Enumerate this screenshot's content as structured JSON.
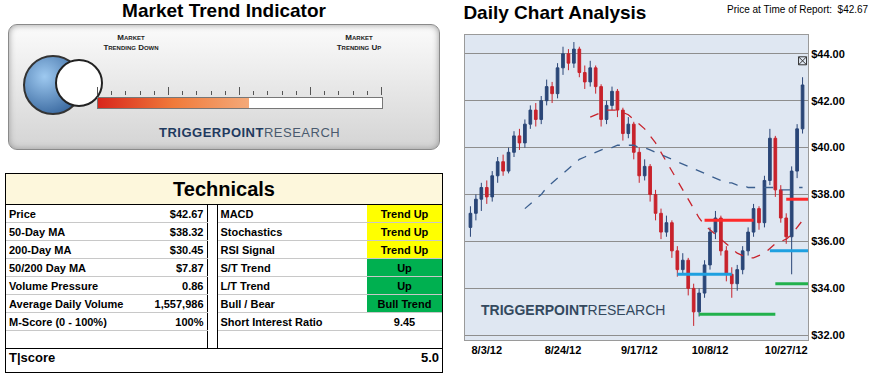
{
  "indicator": {
    "title": "Market Trend Indicator",
    "left_label": [
      "Market",
      "Trending Down"
    ],
    "right_label": [
      "Market",
      "Trending Up"
    ],
    "value": 53,
    "min": 0,
    "max": 100
  },
  "logo": {
    "bold": "TRIGGERPOINT",
    "light": "RESEARCH"
  },
  "technicals": {
    "title": "Technicals",
    "rows": [
      {
        "cells": [
          "Price",
          "$42.67",
          "MACD",
          "Trend Up"
        ],
        "color": "#ffff00"
      },
      {
        "cells": [
          "50-Day MA",
          "$38.32",
          "Stochastics",
          "Trend Up"
        ],
        "color": "#ffff00"
      },
      {
        "cells": [
          "200-Day MA",
          "$30.45",
          "RSI Signal",
          "Trend Up"
        ],
        "color": "#ffff00"
      },
      {
        "cells": [
          "50/200 Day MA",
          "$7.87",
          "S/T Trend",
          "Up"
        ],
        "color": "#00b050"
      },
      {
        "cells": [
          "Volume Pressure",
          "0.86",
          "L/T Trend",
          "Up"
        ],
        "color": "#00b050"
      },
      {
        "cells": [
          "Average Daily Volume",
          "1,557,986",
          "Bull / Bear",
          "Bull Trend"
        ],
        "color": "#00b050"
      },
      {
        "cells": [
          "M-Score (0 - 100%)",
          "100%",
          "Short Interest Ratio",
          "9.45"
        ],
        "color": "#ffffff"
      }
    ],
    "score": {
      "label": "T|score",
      "value": "5.0"
    }
  },
  "chart_data": {
    "type": "candlestick",
    "title": "Daily Chart Analysis",
    "subtitle": "Price at Time of Report:  $42.67",
    "categories": [
      null,
      null,
      null,
      "8/3/12",
      null,
      null,
      null,
      null,
      null,
      null,
      null,
      null,
      null,
      null,
      null,
      null,
      null,
      "8/24/12",
      null,
      null,
      null,
      null,
      null,
      null,
      null,
      null,
      null,
      null,
      null,
      null,
      null,
      "9/17/12",
      null,
      null,
      null,
      null,
      null,
      null,
      null,
      null,
      null,
      null,
      null,
      null,
      "10/8/12",
      null,
      null,
      null,
      null,
      null,
      null,
      null,
      null,
      null,
      null,
      null,
      null,
      null,
      "10/27/12",
      null,
      null,
      null
    ],
    "ylim": [
      31.8,
      44.8
    ],
    "yticks": [
      {
        "value": 32,
        "label": "$32.00"
      },
      {
        "value": 34,
        "label": "$34.00"
      },
      {
        "value": 36,
        "label": "$36.00"
      },
      {
        "value": 38,
        "label": "$38.00"
      },
      {
        "value": 40,
        "label": "$40.00"
      },
      {
        "value": 42,
        "label": "$42.00"
      },
      {
        "value": 44,
        "label": "$44.00"
      }
    ],
    "grid": true,
    "series": [
      {
        "type": "candlestick",
        "color": {
          "increasing": "#2a4677",
          "decreasing": "#c8232c"
        },
        "open": [
          36.6,
          37.2,
          37.8,
          38.3,
          37.9,
          38.8,
          39.4,
          39.0,
          39.8,
          40.5,
          40.2,
          41.0,
          41.6,
          41.2,
          42.0,
          42.6,
          42.3,
          43.4,
          44.0,
          43.6,
          44.2,
          43.2,
          42.8,
          43.4,
          42.6,
          41.2,
          41.8,
          42.4,
          41.6,
          40.6,
          41.0,
          39.8,
          38.8,
          39.2,
          38.0,
          37.2,
          36.4,
          36.8,
          35.6,
          34.8,
          35.2,
          34.0,
          33.0,
          33.8,
          35.0,
          36.4,
          37.0,
          35.6,
          34.6,
          34.2,
          34.8,
          35.6,
          36.4,
          37.4,
          36.8,
          38.6,
          40.4,
          38.2,
          37.0,
          36.2,
          39.0,
          40.8
        ],
        "high": [
          37.5,
          38.0,
          38.5,
          38.6,
          39.0,
          39.6,
          39.7,
          40.0,
          40.7,
          40.8,
          41.2,
          41.8,
          41.9,
          42.2,
          42.9,
          42.8,
          43.6,
          44.3,
          44.2,
          44.5,
          44.3,
          43.5,
          43.7,
          43.5,
          42.7,
          42.0,
          42.6,
          42.5,
          41.7,
          41.3,
          41.1,
          40.0,
          39.5,
          39.3,
          38.2,
          37.4,
          37.1,
          36.9,
          35.8,
          35.5,
          35.3,
          34.2,
          34.0,
          35.2,
          36.6,
          37.3,
          37.1,
          35.8,
          34.9,
          35.0,
          35.8,
          36.6,
          37.6,
          37.5,
          38.8,
          40.8,
          40.5,
          38.4,
          37.2,
          39.2,
          41.0,
          43.0
        ],
        "low": [
          36.2,
          36.9,
          37.3,
          37.6,
          37.7,
          38.5,
          38.8,
          38.9,
          39.6,
          39.9,
          40.0,
          40.8,
          40.9,
          41.0,
          41.8,
          41.9,
          42.1,
          43.1,
          43.3,
          43.4,
          43.0,
          42.5,
          42.6,
          42.3,
          40.9,
          41.0,
          41.6,
          41.3,
          40.3,
          40.4,
          39.5,
          38.5,
          38.6,
          37.7,
          36.9,
          36.1,
          36.2,
          35.3,
          34.5,
          34.6,
          33.7,
          32.4,
          32.8,
          33.6,
          34.8,
          36.1,
          35.4,
          34.3,
          33.6,
          33.9,
          34.6,
          35.4,
          36.2,
          36.5,
          36.6,
          38.4,
          37.9,
          36.8,
          35.9,
          34.6,
          38.7,
          40.6
        ],
        "close": [
          37.2,
          37.8,
          38.3,
          37.9,
          38.8,
          39.4,
          39.0,
          39.8,
          40.5,
          40.2,
          41.0,
          41.6,
          41.2,
          42.0,
          42.6,
          42.3,
          43.4,
          44.0,
          43.6,
          44.2,
          43.2,
          42.8,
          43.4,
          42.6,
          41.2,
          41.8,
          42.4,
          41.6,
          40.6,
          41.0,
          39.8,
          38.8,
          39.2,
          38.0,
          37.2,
          36.4,
          36.8,
          35.6,
          34.8,
          35.2,
          34.0,
          33.0,
          33.8,
          35.0,
          36.4,
          37.0,
          35.6,
          34.6,
          34.2,
          34.8,
          35.6,
          36.4,
          37.4,
          36.8,
          38.6,
          40.4,
          38.2,
          37.0,
          36.2,
          39.0,
          40.8,
          42.67
        ]
      },
      {
        "type": "line",
        "color": "#c8232c",
        "line_style": "dash",
        "values": [
          null,
          null,
          null,
          null,
          null,
          null,
          null,
          null,
          null,
          null,
          null,
          null,
          null,
          null,
          null,
          null,
          null,
          null,
          null,
          null,
          null,
          null,
          41.3,
          41.4,
          41.5,
          41.6,
          41.6,
          41.6,
          41.5,
          41.4,
          41.2,
          41.0,
          40.8,
          40.5,
          40.2,
          39.8,
          39.4,
          39.0,
          38.6,
          38.2,
          37.8,
          37.4,
          37.0,
          36.7,
          36.5,
          36.3,
          36.1,
          35.9,
          35.7,
          35.5,
          35.4,
          35.3,
          35.3,
          35.4,
          35.5,
          35.7,
          35.9,
          36.0,
          36.1,
          36.3,
          36.6,
          36.9
        ]
      },
      {
        "type": "line",
        "color": "#3b5f8f",
        "line_style": "dash",
        "values": [
          null,
          null,
          null,
          null,
          null,
          null,
          null,
          null,
          null,
          null,
          37.4,
          37.6,
          37.8,
          38.0,
          38.3,
          38.5,
          38.7,
          38.9,
          39.1,
          39.3,
          39.5,
          39.6,
          39.7,
          39.8,
          39.9,
          40.0,
          40.0,
          40.1,
          40.1,
          40.1,
          40.1,
          40.0,
          40.0,
          39.9,
          39.8,
          39.7,
          39.6,
          39.5,
          39.4,
          39.3,
          39.2,
          39.1,
          39.0,
          38.9,
          38.8,
          38.7,
          38.6,
          38.5,
          38.5,
          38.4,
          38.4,
          38.3,
          38.3,
          38.3,
          38.3,
          38.3,
          38.3,
          38.2,
          38.2,
          38.2,
          38.3,
          38.3
        ]
      },
      {
        "type": "hline",
        "color": "#ff2a2a",
        "value": 36.9,
        "x": [
          43,
          52
        ]
      },
      {
        "type": "hline",
        "color": "#ff2a2a",
        "value": 37.8,
        "x": [
          58,
          62
        ]
      },
      {
        "type": "hline",
        "color": "#1ea0e0",
        "value": 34.6,
        "x": [
          38,
          48
        ]
      },
      {
        "type": "hline",
        "color": "#1ea0e0",
        "value": 35.6,
        "x": [
          55,
          62
        ]
      },
      {
        "type": "hline",
        "color": "#22b14c",
        "value": 34.2,
        "x": [
          56,
          62
        ]
      },
      {
        "type": "hline",
        "color": "#22b14c",
        "value": 32.9,
        "x": [
          42,
          56
        ]
      },
      {
        "type": "scatter",
        "marker": "square-x-open",
        "color": "#333333",
        "x": [
          61
        ],
        "values": [
          43.7
        ]
      }
    ]
  }
}
